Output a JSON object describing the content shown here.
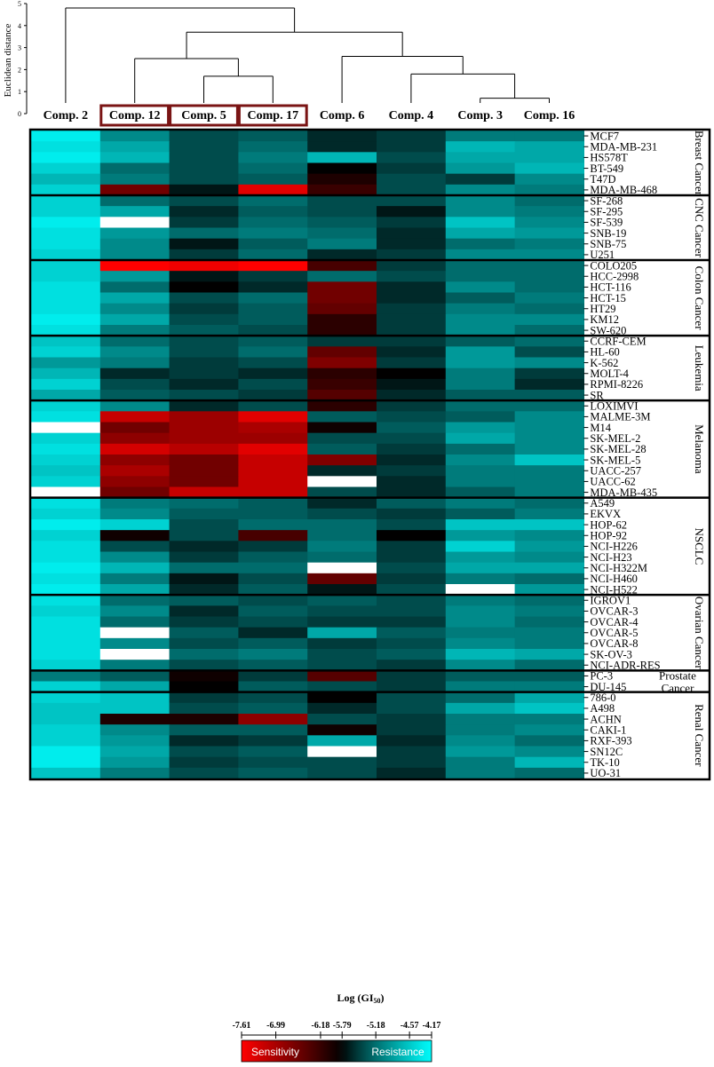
{
  "chart_data": {
    "type": "heatmap",
    "ylabel": "Euclidean distance",
    "dendrogram_ticks": [
      "0",
      "1",
      "2",
      "3",
      "4",
      "5"
    ],
    "columns": [
      "Comp. 2",
      "Comp. 12",
      "Comp. 5",
      "Comp. 17",
      "Comp. 6",
      "Comp. 4",
      "Comp. 3",
      "Comp. 16"
    ],
    "highlighted_columns": [
      "Comp. 12",
      "Comp. 5",
      "Comp. 17"
    ],
    "groups": [
      {
        "name": "Breast Cancer",
        "lines": [
          "Breast",
          "Cancer"
        ],
        "rows": [
          "MCF7",
          "MDA-MB-231",
          "HS578T",
          "BT-549",
          "T47D",
          "MDA-MB-468"
        ]
      },
      {
        "name": "CNC Cancer",
        "lines": [
          "CNC",
          "Cancer"
        ],
        "rows": [
          "SF-268",
          "SF-295",
          "SF-539",
          "SNB-19",
          "SNB-75",
          "U251"
        ]
      },
      {
        "name": "Colon Cancer",
        "lines": [
          "Colon",
          "Cancer"
        ],
        "rows": [
          "COLO205",
          "HCC-2998",
          "HCT-116",
          "HCT-15",
          "HT29",
          "KM12",
          "SW-620"
        ]
      },
      {
        "name": "Leukemia",
        "lines": [
          "Leukemia"
        ],
        "rows": [
          "CCRF-CEM",
          "HL-60",
          "K-562",
          "MOLT-4",
          "RPMI-8226",
          "SR"
        ]
      },
      {
        "name": "Melanoma",
        "lines": [
          "Melanoma"
        ],
        "rows": [
          "LOXIMVI",
          "MALME-3M",
          "M14",
          "SK-MEL-2",
          "SK-MEL-28",
          "SK-MEL-5",
          "UACC-257",
          "UACC-62",
          "MDA-MB-435"
        ]
      },
      {
        "name": "NSCLC",
        "lines": [
          "NSCLC"
        ],
        "rows": [
          "A549",
          "EKVX",
          "HOP-62",
          "HOP-92",
          "NCI-H226",
          "NCI-H23",
          "NCI-H322M",
          "NCI-H460",
          "NCI-H522"
        ]
      },
      {
        "name": "Ovarian Cancer",
        "lines": [
          "Ovarian",
          "Cancer"
        ],
        "rows": [
          "IGROV1",
          "OVCAR-3",
          "OVCAR-4",
          "OVCAR-5",
          "OVCAR-8",
          "SK-OV-3",
          "NCI-ADR-RES"
        ]
      },
      {
        "name": "Prostate Cancer",
        "lines": [
          "Prostate",
          "Cancer"
        ],
        "rows": [
          "PC-3",
          "DU-145"
        ]
      },
      {
        "name": "Renal Cancer",
        "lines": [
          "Renal",
          "Cancer"
        ],
        "rows": [
          "786-0",
          "A498",
          "ACHN",
          "CAKI-1",
          "RXF-393",
          "SN12C",
          "TK-10",
          "UO-31"
        ]
      }
    ],
    "values": [
      [
        -4.3,
        -5.0,
        -5.4,
        -5.3,
        -5.6,
        -5.5,
        -5.1,
        -5.1
      ],
      [
        -4.4,
        -4.8,
        -5.4,
        -5.2,
        -5.6,
        -5.5,
        -4.7,
        -4.8
      ],
      [
        -4.3,
        -4.7,
        -5.4,
        -5.1,
        -4.7,
        -5.4,
        -4.8,
        -4.8
      ],
      [
        -4.5,
        -5.2,
        -5.4,
        -5.2,
        -5.8,
        -5.5,
        -4.9,
        -4.7
      ],
      [
        -4.7,
        -5.1,
        -5.4,
        -5.3,
        -6.0,
        -5.4,
        -5.5,
        -5.0
      ],
      [
        -4.5,
        -6.6,
        -5.7,
        -7.4,
        -6.2,
        -5.4,
        -5.0,
        -5.1
      ],
      [
        -4.5,
        -5.2,
        -5.4,
        -5.2,
        -5.4,
        -5.4,
        -5.0,
        -5.2
      ],
      [
        -4.5,
        -4.8,
        -5.6,
        -5.3,
        -5.4,
        -5.7,
        -5.0,
        -5.1
      ],
      [
        -4.3,
        -4.2,
        -5.5,
        -5.2,
        -5.3,
        -5.5,
        -4.6,
        -5.0
      ],
      [
        -4.4,
        -4.9,
        -5.2,
        -5.1,
        -5.2,
        -5.6,
        -4.8,
        -4.9
      ],
      [
        -4.4,
        -5.0,
        -5.7,
        -5.3,
        -5.1,
        -5.6,
        -5.2,
        -5.1
      ],
      [
        -4.5,
        -5.0,
        -5.5,
        -5.2,
        -5.6,
        -5.5,
        -5.0,
        -5.0
      ],
      [
        -4.5,
        -7.6,
        -7.5,
        -7.6,
        -6.3,
        -5.5,
        -5.2,
        -5.2
      ],
      [
        -4.5,
        -4.9,
        -5.7,
        -5.5,
        -5.2,
        -5.4,
        -5.2,
        -5.2
      ],
      [
        -4.4,
        -5.2,
        -5.8,
        -5.6,
        -6.6,
        -5.6,
        -5.0,
        -5.2
      ],
      [
        -4.4,
        -4.8,
        -5.4,
        -5.2,
        -6.6,
        -5.6,
        -5.3,
        -5.1
      ],
      [
        -4.4,
        -5.0,
        -5.5,
        -5.3,
        -6.5,
        -5.5,
        -5.1,
        -5.2
      ],
      [
        -4.3,
        -4.8,
        -5.4,
        -5.3,
        -6.1,
        -5.5,
        -5.0,
        -5.0
      ],
      [
        -4.4,
        -5.1,
        -5.3,
        -5.4,
        -6.1,
        -5.5,
        -5.0,
        -5.2
      ],
      [
        -4.6,
        -5.2,
        -5.4,
        -5.3,
        -5.5,
        -5.5,
        -5.3,
        -5.2
      ],
      [
        -4.5,
        -5.0,
        -5.4,
        -5.2,
        -6.5,
        -5.6,
        -4.9,
        -5.4
      ],
      [
        -4.9,
        -5.1,
        -5.5,
        -5.4,
        -6.7,
        -5.5,
        -4.9,
        -5.0
      ],
      [
        -4.7,
        -5.6,
        -5.5,
        -5.6,
        -6.1,
        -5.8,
        -5.1,
        -5.5
      ],
      [
        -4.5,
        -5.4,
        -5.6,
        -5.4,
        -6.2,
        -5.7,
        -5.1,
        -5.6
      ],
      [
        -4.8,
        -5.3,
        -5.4,
        -5.5,
        -6.4,
        -5.6,
        -5.3,
        -5.3
      ],
      [
        -4.5,
        -5.0,
        -5.6,
        -5.4,
        -6.1,
        -5.5,
        -5.2,
        -5.2
      ],
      [
        -4.4,
        -7.2,
        -6.9,
        -7.4,
        -5.3,
        -5.4,
        -5.3,
        -5.0
      ],
      [
        -4.2,
        -6.6,
        -6.9,
        -7.0,
        -5.9,
        -5.3,
        -4.9,
        -5.0
      ],
      [
        -4.5,
        -6.8,
        -6.9,
        -6.9,
        -5.4,
        -5.4,
        -4.8,
        -5.0
      ],
      [
        -4.4,
        -7.3,
        -7.1,
        -7.4,
        -5.3,
        -5.5,
        -5.2,
        -5.0
      ],
      [
        -4.5,
        -6.8,
        -6.6,
        -7.2,
        -6.7,
        -5.6,
        -5.0,
        -4.6
      ],
      [
        -4.6,
        -7.0,
        -6.6,
        -7.2,
        -5.6,
        -5.5,
        -5.1,
        -5.1
      ],
      [
        -4.5,
        -6.8,
        -6.6,
        -7.2,
        -4.17,
        -5.6,
        -5.1,
        -5.1
      ],
      [
        -4.17,
        -6.6,
        -7.2,
        -7.2,
        -5.4,
        -5.6,
        -5.3,
        -5.1
      ],
      [
        -4.4,
        -5.1,
        -5.2,
        -5.3,
        -5.6,
        -5.3,
        -5.1,
        -5.2
      ],
      [
        -4.5,
        -5.0,
        -5.3,
        -5.3,
        -5.4,
        -5.5,
        -5.3,
        -5.1
      ],
      [
        -4.3,
        -4.5,
        -5.4,
        -5.2,
        -5.2,
        -5.4,
        -4.6,
        -4.6
      ],
      [
        -4.5,
        -5.9,
        -5.4,
        -6.3,
        -5.2,
        -5.8,
        -4.9,
        -5.0
      ],
      [
        -4.4,
        -5.4,
        -5.6,
        -5.5,
        -5.1,
        -5.5,
        -4.5,
        -4.9
      ],
      [
        -4.4,
        -5.0,
        -5.5,
        -5.3,
        -5.2,
        -5.5,
        -4.9,
        -5.0
      ],
      [
        -4.3,
        -4.7,
        -5.2,
        -5.2,
        -4.17,
        -5.4,
        -4.8,
        -4.8
      ],
      [
        -4.4,
        -5.1,
        -5.7,
        -5.4,
        -6.5,
        -5.5,
        -5.1,
        -5.2
      ],
      [
        -4.3,
        -4.8,
        -5.6,
        -5.3,
        -5.7,
        -5.4,
        -4.17,
        -4.9
      ],
      [
        -4.4,
        -5.2,
        -5.3,
        -5.4,
        -5.3,
        -5.4,
        -5.1,
        -5.2
      ],
      [
        -4.5,
        -5.0,
        -5.6,
        -5.3,
        -5.4,
        -5.4,
        -5.0,
        -5.1
      ],
      [
        -4.4,
        -5.2,
        -5.5,
        -5.4,
        -5.5,
        -5.5,
        -5.0,
        -5.2
      ],
      [
        -4.4,
        -4.17,
        -5.3,
        -5.6,
        -4.8,
        -5.3,
        -5.1,
        -5.1
      ],
      [
        -4.4,
        -5.0,
        -5.4,
        -5.3,
        -5.5,
        -5.4,
        -5.0,
        -5.1
      ],
      [
        -4.4,
        -4.17,
        -5.2,
        -5.1,
        -5.4,
        -5.3,
        -4.7,
        -4.8
      ],
      [
        -4.5,
        -5.1,
        -5.4,
        -5.3,
        -5.4,
        -5.5,
        -5.0,
        -5.2
      ],
      [
        -5.1,
        -5.3,
        -5.9,
        -5.5,
        -6.4,
        -5.5,
        -5.3,
        -5.3
      ],
      [
        -4.5,
        -4.8,
        -5.8,
        -5.3,
        -5.4,
        -5.5,
        -5.1,
        -5.1
      ],
      [
        -4.5,
        -4.6,
        -5.5,
        -5.4,
        -5.8,
        -5.4,
        -5.2,
        -4.8
      ],
      [
        -4.6,
        -4.6,
        -5.4,
        -5.3,
        -5.6,
        -5.4,
        -4.8,
        -4.6
      ],
      [
        -4.6,
        -6.0,
        -6.0,
        -6.8,
        -5.4,
        -5.5,
        -5.1,
        -5.1
      ],
      [
        -4.5,
        -5.0,
        -5.3,
        -5.3,
        -5.9,
        -5.5,
        -5.1,
        -5.0
      ],
      [
        -4.5,
        -4.9,
        -5.6,
        -5.5,
        -4.8,
        -5.6,
        -5.0,
        -5.2
      ],
      [
        -4.3,
        -4.8,
        -5.4,
        -5.3,
        -4.17,
        -5.5,
        -4.9,
        -5.0
      ],
      [
        -4.3,
        -4.9,
        -5.5,
        -5.4,
        -5.4,
        -5.5,
        -5.1,
        -4.7
      ],
      [
        -4.6,
        -5.1,
        -5.4,
        -5.3,
        -5.4,
        -5.6,
        -5.1,
        -5.2
      ]
    ],
    "colorbar": {
      "title": "Log (GI",
      "title_sub": "50",
      "title_end": ")",
      "ticks": [
        "-7.61",
        "-6.99",
        "-6.18",
        "-5.79",
        "-5.18",
        "-4.57",
        "-4.17"
      ],
      "min": -7.61,
      "max": -4.17,
      "left_label": "Sensitivity",
      "right_label": "Resistance"
    },
    "colors": {
      "low": "#ff0000",
      "mid": "#000000",
      "high": "#00ffff",
      "extreme_high": "#ffffff",
      "box": "#7a1414",
      "label_text": "#ffffff"
    }
  }
}
